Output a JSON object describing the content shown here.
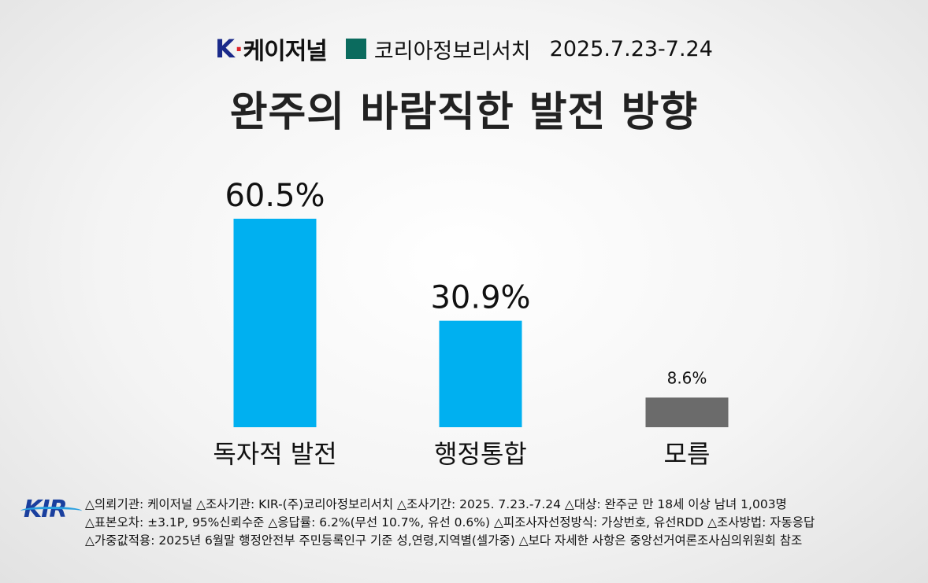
{
  "header": {
    "brand": "케이저널",
    "brand_k": "K",
    "source": "코리아정보리서치",
    "date": "2025.7.23-7.24",
    "square_color": "#0b6b5e"
  },
  "title": "완주의 바람직한 발전 방향",
  "chart_data": {
    "type": "bar",
    "title": "완주의 바람직한 발전 방향",
    "categories": [
      "독자적 발전",
      "행정통합",
      "모름"
    ],
    "values": [
      60.5,
      30.9,
      8.6
    ],
    "value_labels": [
      "60.5%",
      "30.9%",
      "8.6%"
    ],
    "colors": [
      "#00b0f0",
      "#00b0f0",
      "#6b6b6b"
    ],
    "ylim": [
      0,
      70
    ],
    "grid": false,
    "xlabel": "",
    "ylabel": ""
  },
  "footer": {
    "logo_text": "KIR",
    "lines": [
      "△의뢰기관: 케이저널  △조사기관: KIR-(주)코리아정보리서치 △조사기간: 2025. 7.23.-7.24  △대상: 완주군 만 18세 이상 남녀 1,003명",
      "△표본오차: ±3.1P, 95%신뢰수준 △응답률: 6.2%(무선 10.7%, 유선 0.6%) △피조사자선정방식: 가상번호, 유선RDD  △조사방법: 자동응답",
      "△가중값적용: 2025년 6월말 행정안전부 주민등록인구 기준 성,연령,지역별(셀가중) △보다 자세한 사항은 중앙선거여론조사심의위원회 참조"
    ]
  }
}
